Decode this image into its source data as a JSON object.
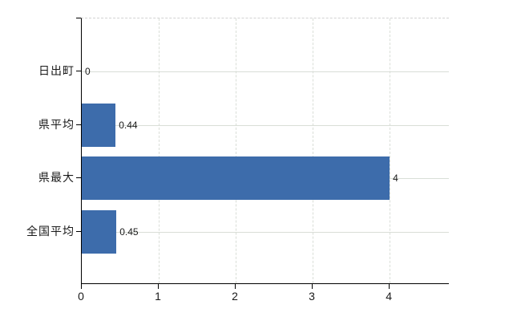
{
  "chart_data": {
    "type": "bar",
    "orientation": "horizontal",
    "title": "",
    "xlabel": "",
    "ylabel": "",
    "categories": [
      "日出町",
      "県平均",
      "県最大",
      "全国平均"
    ],
    "values": [
      0,
      0.44,
      4,
      0.45
    ],
    "value_labels": [
      "0",
      "0.44",
      "4",
      "0.45"
    ],
    "x_tick_labels": [
      "0",
      "1",
      "2",
      "3",
      "4"
    ],
    "x_tick_values": [
      0,
      1,
      2,
      3,
      4
    ],
    "xlim": [
      0,
      4.78
    ],
    "grid": true,
    "legend": false,
    "colors": {
      "bar": "#3d6cab",
      "grid": "#d9ded7",
      "frame_dash": "#d2d2d2",
      "axis": "#000000",
      "text": "#1a1a1a",
      "background": "#ffffff"
    }
  }
}
